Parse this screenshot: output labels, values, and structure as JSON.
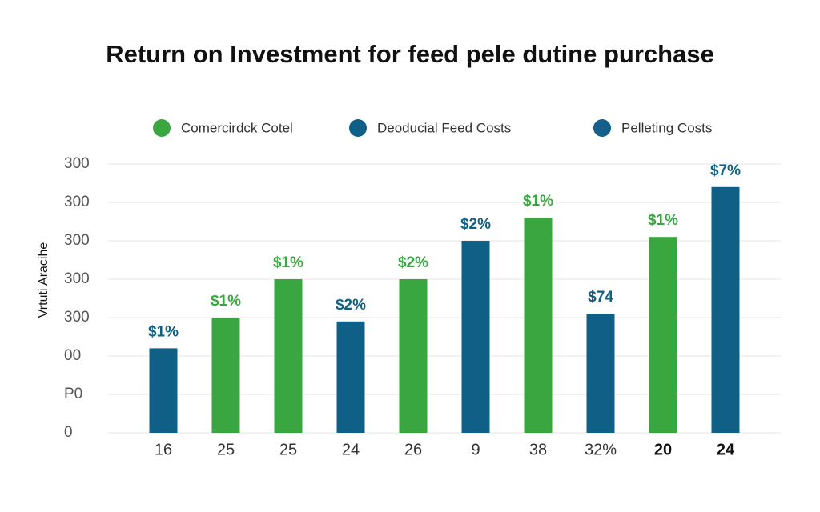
{
  "chart_data": {
    "type": "bar",
    "title": "Return on Investment for feed pele dutine purchase",
    "y_label": "Vrtuti Aracihe",
    "categories": [
      "16",
      "25",
      "25",
      "24",
      "26",
      "9",
      "38",
      "32%",
      "20",
      "24"
    ],
    "series": [
      {
        "name": "Comercirdck Cotel",
        "color": "#3aa640",
        "values": [
          null,
          3.0,
          4.0,
          null,
          4.0,
          null,
          5.6,
          null,
          5.1,
          null
        ]
      },
      {
        "name": "Deoducial Feed Costs",
        "color": "#0f5f86",
        "values": [
          2.2,
          null,
          null,
          2.9,
          null,
          5.0,
          null,
          3.1,
          null,
          6.4
        ]
      },
      {
        "name": "Pelleting Costs",
        "color": "#14608a",
        "values": [
          null,
          null,
          null,
          null,
          null,
          null,
          null,
          null,
          null,
          null
        ]
      }
    ],
    "annotations": [
      "$1%",
      "$1%",
      "$1%",
      "$2%",
      "$2%",
      "$2%",
      "$1%",
      "$74",
      "$1%",
      "$7%"
    ],
    "ylim": [
      0,
      7
    ],
    "yticks": [
      {
        "value": 0,
        "label": "0"
      },
      {
        "value": 1,
        "label": "P0"
      },
      {
        "value": 2,
        "label": "00"
      },
      {
        "value": 3,
        "label": "300"
      },
      {
        "value": 4,
        "label": "300"
      },
      {
        "value": 5,
        "label": "300"
      },
      {
        "value": 6,
        "label": "300"
      },
      {
        "value": 7,
        "label": "300"
      }
    ],
    "grid": true
  }
}
